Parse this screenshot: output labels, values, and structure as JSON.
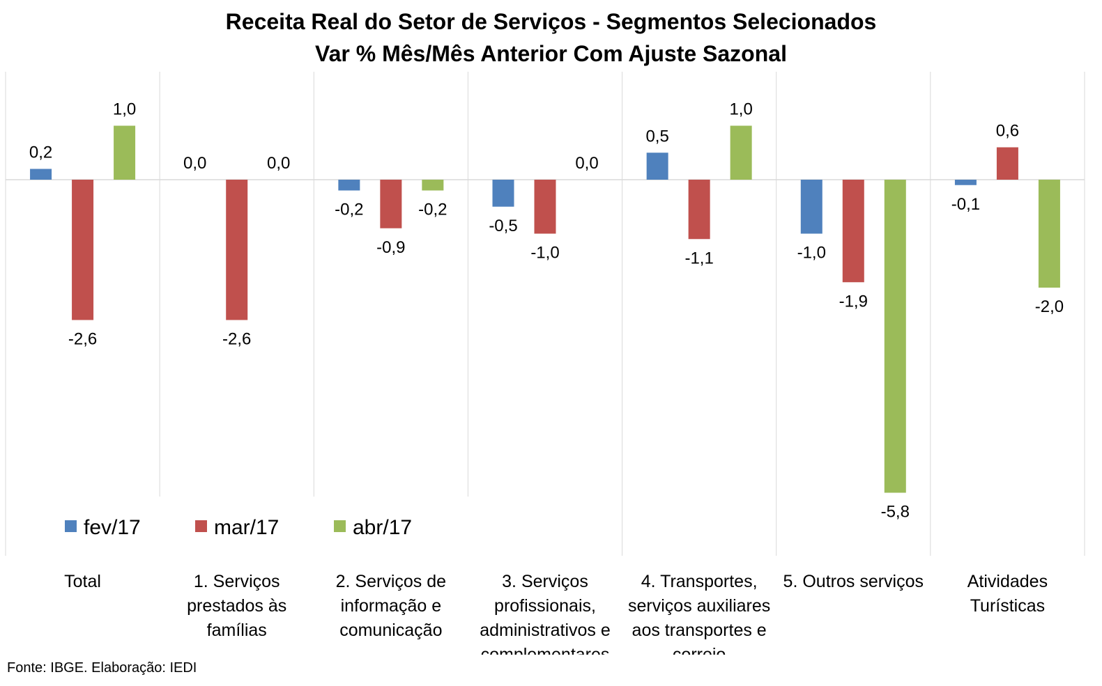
{
  "title_line1": "Receita Real do Setor de Serviços - Segmentos Selecionados",
  "title_line2": "Var % Mês/Mês Anterior Com Ajuste Sazonal",
  "source": "Fonte: IBGE. Elaboração: IEDI",
  "colors": {
    "fev/17": "#4F81BD",
    "mar/17": "#C0504D",
    "abr/17": "#9BBB59",
    "grid": "#D9D9D9",
    "axis": "#D9D9D9"
  },
  "chart_data": {
    "type": "bar",
    "title": "Receita Real do Setor de Serviços - Segmentos Selecionados / Var % Mês/Mês Anterior Com Ajuste Sazonal",
    "categories": [
      [
        "Total"
      ],
      [
        "1. Serviços",
        "prestados às",
        "famílias"
      ],
      [
        "2. Serviços de",
        "informação e",
        "comunicação"
      ],
      [
        "3. Serviços",
        "profissionais,",
        "administrativos e",
        "complementares"
      ],
      [
        "4. Transportes,",
        "serviços auxiliares",
        "aos transportes e",
        "correio"
      ],
      [
        "5. Outros serviços"
      ],
      [
        "Atividades",
        "Turísticas"
      ]
    ],
    "series": [
      {
        "name": "fev/17",
        "values": [
          0.2,
          0.0,
          -0.2,
          -0.5,
          0.5,
          -1.0,
          -0.1
        ],
        "labels": [
          "0,2",
          "0,0",
          "-0,2",
          "-0,5",
          "0,5",
          "-1,0",
          "-0,1"
        ]
      },
      {
        "name": "mar/17",
        "values": [
          -2.6,
          -2.6,
          -0.9,
          -1.0,
          -1.1,
          -1.9,
          0.6
        ],
        "labels": [
          "-2,6",
          "-2,6",
          "-0,9",
          "-1,0",
          "-1,1",
          "-1,9",
          "0,6"
        ]
      },
      {
        "name": "abr/17",
        "values": [
          1.0,
          0.0,
          -0.2,
          0.0,
          1.0,
          -5.8,
          -2.0
        ],
        "labels": [
          "1,0",
          "0,0",
          "-0,2",
          "0,0",
          "1,0",
          "-5,8",
          "-2,0"
        ]
      }
    ],
    "legend": {
      "position": "bottom-left",
      "entries": [
        "fev/17",
        "mar/17",
        "abr/17"
      ]
    },
    "grid": "vertical category separators",
    "ylim": [
      -7.0,
      2.0
    ]
  }
}
